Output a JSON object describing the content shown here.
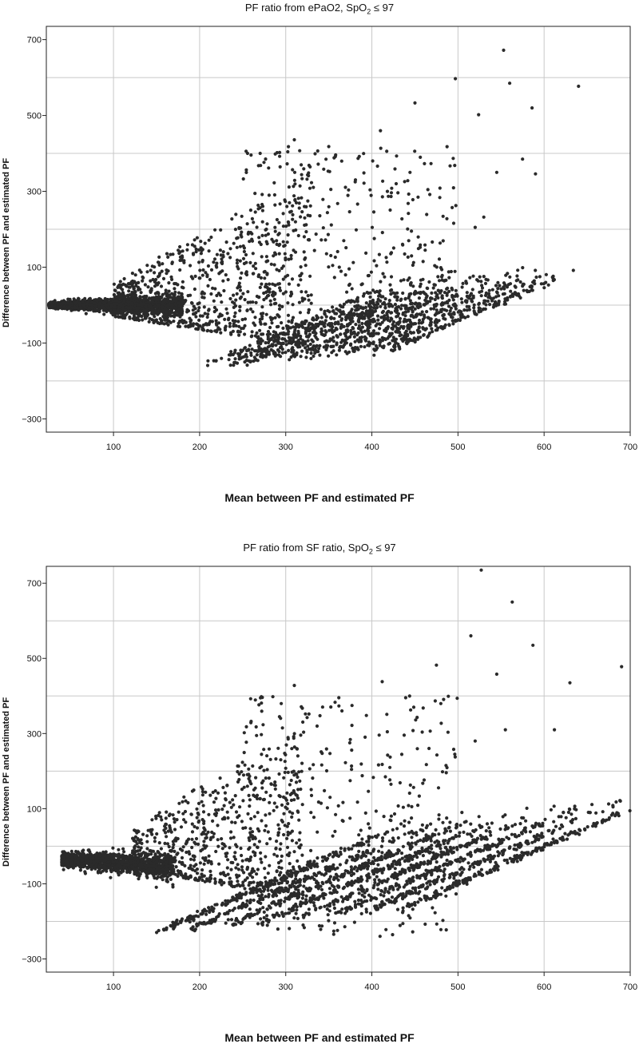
{
  "chart_data": [
    {
      "type": "scatter",
      "title": "PF ratio from ePaO2, SpO",
      "title_sub": "2",
      "title_suffix": " ≤ 97",
      "xlabel": "Mean between PF and estimated PF",
      "ylabel": "Difference between PF and estimated PF",
      "xlim": [
        22,
        700
      ],
      "ylim": [
        -335,
        735
      ],
      "xticks": [
        100,
        200,
        300,
        400,
        500,
        600,
        700
      ],
      "yticks": [
        -300,
        -100,
        100,
        300,
        500,
        700
      ],
      "grid_x": [
        100,
        200,
        300,
        400,
        500,
        600,
        700
      ],
      "grid_y": [
        -200,
        0,
        200,
        400,
        600
      ],
      "grid": true,
      "point_color": "#2a2a2a",
      "n_points_approx": 4000,
      "outliers": [
        [
          553,
          672
        ],
        [
          497,
          597
        ],
        [
          560,
          585
        ],
        [
          640,
          577
        ],
        [
          450,
          533
        ],
        [
          524,
          502
        ],
        [
          586,
          520
        ],
        [
          410,
          460
        ],
        [
          310,
          436
        ],
        [
          290,
          402
        ],
        [
          350,
          418
        ],
        [
          575,
          385
        ],
        [
          590,
          346
        ],
        [
          545,
          350
        ],
        [
          530,
          232
        ],
        [
          520,
          205
        ]
      ],
      "clusters": [
        {
          "kind": "blob",
          "x": [
            25,
            180
          ],
          "y_center": [
            0,
            0
          ],
          "spread": [
            3,
            16
          ],
          "fraction": 0.42
        },
        {
          "kind": "fan",
          "x": [
            100,
            330
          ],
          "y_min": [
            -30,
            -110
          ],
          "y_max": [
            60,
            350
          ],
          "fraction": 0.2
        },
        {
          "kind": "diagonals",
          "slope": 1.0,
          "intercepts_x": [
            210,
            235,
            255,
            275,
            300,
            320,
            345,
            370,
            395,
            420
          ],
          "length": [
            140,
            230
          ],
          "start_y": [
            -160,
            -120
          ],
          "fraction": 0.3
        },
        {
          "kind": "scatter",
          "x": [
            250,
            500
          ],
          "y": [
            -60,
            420
          ],
          "fraction": 0.08
        }
      ]
    },
    {
      "type": "scatter",
      "title": "PF ratio from SF ratio, SpO",
      "title_sub": "2",
      "title_suffix": " ≤ 97",
      "xlabel": "Mean between PF and estimated PF",
      "ylabel": "Difference between PF and estimated PF",
      "xlim": [
        22,
        700
      ],
      "ylim": [
        -335,
        745
      ],
      "xticks": [
        100,
        200,
        300,
        400,
        500,
        600,
        700
      ],
      "yticks": [
        -300,
        -100,
        100,
        300,
        500,
        700
      ],
      "grid_x": [
        100,
        200,
        300,
        400,
        500,
        600,
        700
      ],
      "grid_y": [
        -200,
        0,
        200,
        400,
        600
      ],
      "grid": true,
      "point_color": "#2a2a2a",
      "n_points_approx": 4000,
      "outliers": [
        [
          527,
          735
        ],
        [
          563,
          650
        ],
        [
          515,
          560
        ],
        [
          587,
          535
        ],
        [
          545,
          458
        ],
        [
          630,
          435
        ],
        [
          690,
          478
        ],
        [
          475,
          482
        ],
        [
          412,
          438
        ],
        [
          310,
          428
        ],
        [
          285,
          398
        ],
        [
          612,
          310
        ],
        [
          555,
          310
        ],
        [
          520,
          280
        ]
      ],
      "clusters": [
        {
          "kind": "blob",
          "x": [
            40,
            170
          ],
          "y_center": [
            -35,
            -55
          ],
          "spread": [
            8,
            20
          ],
          "fraction": 0.32
        },
        {
          "kind": "fan",
          "x": [
            120,
            320
          ],
          "y_min": [
            -60,
            -140
          ],
          "y_max": [
            40,
            340
          ],
          "fraction": 0.18
        },
        {
          "kind": "diagonals",
          "slope": 1.0,
          "intercepts_x": [
            150,
            190,
            230,
            270,
            310,
            350,
            390,
            430
          ],
          "length": [
            180,
            320
          ],
          "start_y": [
            -230,
            -170
          ],
          "fraction": 0.42
        },
        {
          "kind": "scatter",
          "x": [
            250,
            500
          ],
          "y": [
            -240,
            400
          ],
          "fraction": 0.08
        }
      ]
    }
  ]
}
